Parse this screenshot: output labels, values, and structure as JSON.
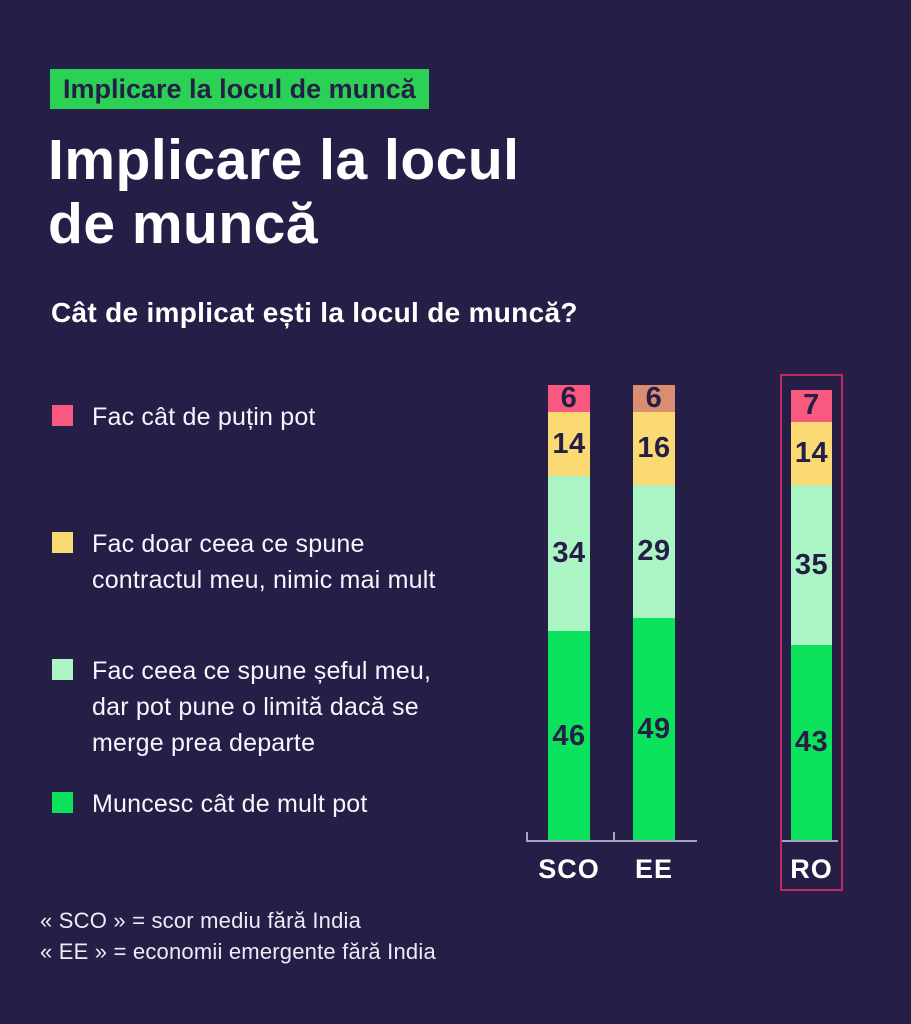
{
  "header": {
    "badge": "Implicare la locul de muncă",
    "title": "Implicare la locul\nde muncă",
    "question": "Cât de implicat ești la locul de muncă?"
  },
  "legend": {
    "items": [
      {
        "label": "Fac cât de puțin pot",
        "color": "#F9587F"
      },
      {
        "label": "Fac doar ceea ce spune\ncontractul meu, nimic mai mult",
        "color": "#FBD973"
      },
      {
        "label": "Fac ceea ce spune șeful meu,\ndar pot pune o limită dacă se\nmerge prea departe",
        "color": "#ABF5C4"
      },
      {
        "label": "Muncesc cât de mult pot",
        "color": "#0CE35C"
      }
    ]
  },
  "chart_data": {
    "type": "bar",
    "variant": "stacked-vertical-100",
    "title": "Cât de implicat ești la locul de muncă?",
    "categories": [
      "SCO",
      "EE",
      "RO"
    ],
    "series": [
      {
        "name": "Fac cât de puțin pot",
        "values": [
          6,
          6,
          7
        ],
        "colors": [
          "#F9587F",
          "#D98E72",
          "#F9587F"
        ]
      },
      {
        "name": "Fac doar ceea ce spune contractul meu, nimic mai mult",
        "values": [
          14,
          16,
          14
        ],
        "colors": [
          "#FBD973",
          "#FBD973",
          "#FBD973"
        ]
      },
      {
        "name": "Fac ceea ce spune șeful meu, dar pot pune o limită dacă se merge prea departe",
        "values": [
          34,
          29,
          35
        ],
        "colors": [
          "#ABF5C4",
          "#ABF5C4",
          "#ABF5C4"
        ]
      },
      {
        "name": "Muncesc cât de mult pot",
        "values": [
          46,
          49,
          43
        ],
        "colors": [
          "#0CE35C",
          "#0CE35C",
          "#0CE35C"
        ]
      }
    ],
    "stack_order": "first-series-on-top",
    "value_labels": true,
    "ylim": [
      0,
      100
    ],
    "gridlines": false,
    "legend_position": "left",
    "highlight": {
      "category": "RO",
      "border_color": "#C12960"
    }
  },
  "footnotes": [
    "« SCO » = scor mediu fără India",
    "« EE » = economii emergente fără India"
  ],
  "colors": {
    "background": "#251F47",
    "badge_bg": "#2BD155",
    "badge_text": "#251F47",
    "text_light": "#FFFFFF",
    "value_text": "#251F47",
    "axis": "#A8A5BC",
    "highlight_border": "#C12960"
  }
}
